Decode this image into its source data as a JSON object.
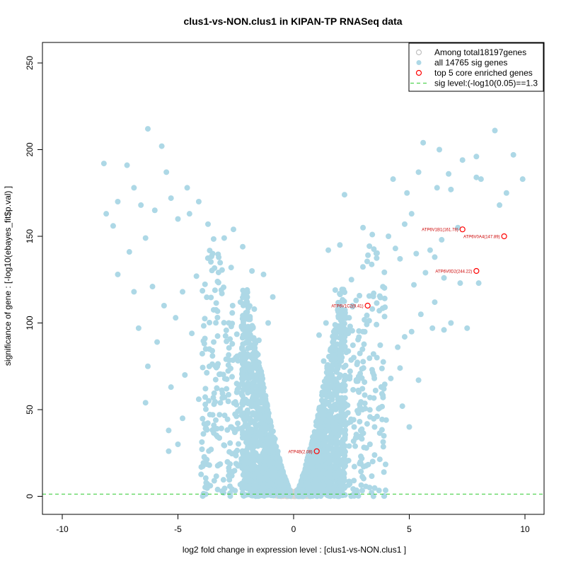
{
  "chart_data": {
    "type": "scatter",
    "title": "clus1-vs-NON.clus1 in KIPAN-TP RNASeq data",
    "xlabel": "log2 fold change in expression level : [clus1-vs-NON.clus1 ]",
    "ylabel": "significance of gene : [-log10(ebayes_fit$p.val) ]",
    "xlim": [
      -10.5,
      10.5
    ],
    "ylim": [
      -10,
      260
    ],
    "x_ticks": [
      -10,
      -5,
      0,
      5,
      10
    ],
    "y_ticks": [
      0,
      50,
      100,
      150,
      200,
      250
    ],
    "sig_level": 1.3,
    "legend": {
      "position": "top-right",
      "entries": [
        {
          "label": "Among total18197genes",
          "marker": "open-circle",
          "color": "#c0c0c0"
        },
        {
          "label": "all 14765 sig genes",
          "marker": "filled-circle",
          "color": "#add8e6"
        },
        {
          "label": "top 5 core enriched genes",
          "marker": "open-circle",
          "color": "#ff0000"
        },
        {
          "label": "sig level:(-log10(0.05)==1.3",
          "marker": "dashed-line",
          "color": "#33cc33"
        }
      ]
    },
    "highlighted_genes": [
      {
        "label": "ATP6V1B1(161.78)",
        "x": 7.3,
        "y": 154
      },
      {
        "label": "ATP6V0A4(147.89)",
        "x": 9.1,
        "y": 150
      },
      {
        "label": "ATP6V0D2(244.22)",
        "x": 7.9,
        "y": 130
      },
      {
        "label": "ATP6V1C2(9.41)",
        "x": 3.2,
        "y": 110
      },
      {
        "label": "ATP4B(2.08)",
        "x": 1.0,
        "y": 26
      }
    ],
    "scatter_points": [
      [
        -8.2,
        192
      ],
      [
        -7.2,
        191
      ],
      [
        -6.3,
        212
      ],
      [
        -5.7,
        202
      ],
      [
        -5.5,
        187
      ],
      [
        -6.9,
        178
      ],
      [
        -7.6,
        170
      ],
      [
        -8.1,
        163
      ],
      [
        -7.8,
        156
      ],
      [
        -6.6,
        168
      ],
      [
        -6.0,
        165
      ],
      [
        -5.3,
        172
      ],
      [
        -4.6,
        178
      ],
      [
        -5.0,
        160
      ],
      [
        -6.4,
        149
      ],
      [
        -7.1,
        141
      ],
      [
        -7.6,
        128
      ],
      [
        -6.9,
        118
      ],
      [
        -6.1,
        121
      ],
      [
        -5.6,
        110
      ],
      [
        -6.7,
        97
      ],
      [
        -5.9,
        89
      ],
      [
        -6.3,
        75
      ],
      [
        -5.3,
        63
      ],
      [
        -6.4,
        54
      ],
      [
        -5.4,
        38
      ],
      [
        -5.4,
        26
      ],
      [
        -4.1,
        170
      ],
      [
        -4.5,
        163
      ],
      [
        -3.7,
        157
      ],
      [
        -3.0,
        149
      ],
      [
        -2.6,
        154
      ],
      [
        -2.2,
        144
      ],
      [
        -2.7,
        132
      ],
      [
        -1.8,
        130
      ],
      [
        -3.5,
        140
      ],
      [
        -4.2,
        127
      ],
      [
        -4.8,
        118
      ],
      [
        -5.1,
        103
      ],
      [
        -4.4,
        94
      ],
      [
        -3.8,
        85
      ],
      [
        -3.3,
        75
      ],
      [
        -4.7,
        70
      ],
      [
        -4.1,
        56
      ],
      [
        -3.5,
        47
      ],
      [
        -4.8,
        45
      ],
      [
        -5.0,
        30
      ],
      [
        -3.9,
        36
      ],
      [
        -2.3,
        112
      ],
      [
        -1.7,
        108
      ],
      [
        -2.1,
        96
      ],
      [
        -1.5,
        90
      ],
      [
        -2.8,
        100
      ],
      [
        -3.1,
        117
      ],
      [
        -1.3,
        128
      ],
      [
        -0.9,
        115
      ],
      [
        -1.1,
        100
      ],
      [
        -1.4,
        72
      ],
      [
        -2.5,
        80
      ],
      [
        -2.9,
        62
      ],
      [
        8.7,
        211
      ],
      [
        9.5,
        197
      ],
      [
        9.9,
        183
      ],
      [
        6.3,
        200
      ],
      [
        5.6,
        204
      ],
      [
        7.9,
        196
      ],
      [
        7.3,
        194
      ],
      [
        5.4,
        187
      ],
      [
        6.7,
        186
      ],
      [
        7.9,
        184
      ],
      [
        8.1,
        183
      ],
      [
        9.2,
        175
      ],
      [
        4.3,
        183
      ],
      [
        6.2,
        178
      ],
      [
        6.8,
        177
      ],
      [
        4.9,
        175
      ],
      [
        8.9,
        168
      ],
      [
        5.1,
        163
      ],
      [
        4.8,
        157
      ],
      [
        7.1,
        155
      ],
      [
        6.4,
        148
      ],
      [
        5.9,
        142
      ],
      [
        5.3,
        140
      ],
      [
        6.1,
        138
      ],
      [
        3.0,
        155
      ],
      [
        2.2,
        174
      ],
      [
        3.4,
        151
      ],
      [
        4.1,
        150
      ],
      [
        4.4,
        143
      ],
      [
        4.6,
        137
      ],
      [
        5.7,
        129
      ],
      [
        6.5,
        126
      ],
      [
        7.2,
        123
      ],
      [
        8.0,
        123
      ],
      [
        5.2,
        122
      ],
      [
        6.1,
        112
      ],
      [
        6.8,
        100
      ],
      [
        7.5,
        97
      ],
      [
        6.0,
        97
      ],
      [
        6.5,
        96
      ],
      [
        5.5,
        105
      ],
      [
        5.1,
        95
      ],
      [
        4.8,
        92
      ],
      [
        4.5,
        86
      ],
      [
        4.6,
        74
      ],
      [
        4.2,
        68
      ],
      [
        3.6,
        80
      ],
      [
        3.9,
        62
      ],
      [
        3.3,
        57
      ],
      [
        5.4,
        67
      ],
      [
        4.7,
        52
      ],
      [
        5.0,
        40
      ],
      [
        4.0,
        44
      ],
      [
        3.5,
        40
      ],
      [
        2.8,
        48
      ],
      [
        2.9,
        38
      ],
      [
        2.4,
        29
      ],
      [
        2.2,
        19
      ],
      [
        3.3,
        30
      ],
      [
        2.0,
        145
      ],
      [
        1.5,
        142
      ],
      [
        2.5,
        125
      ],
      [
        1.8,
        119
      ],
      [
        2.7,
        113
      ],
      [
        2.4,
        103
      ],
      [
        1.4,
        100
      ],
      [
        2.1,
        92
      ],
      [
        1.6,
        85
      ],
      [
        3.0,
        95
      ],
      [
        2.6,
        80
      ],
      [
        1.1,
        93
      ],
      [
        1.3,
        78
      ]
    ]
  }
}
